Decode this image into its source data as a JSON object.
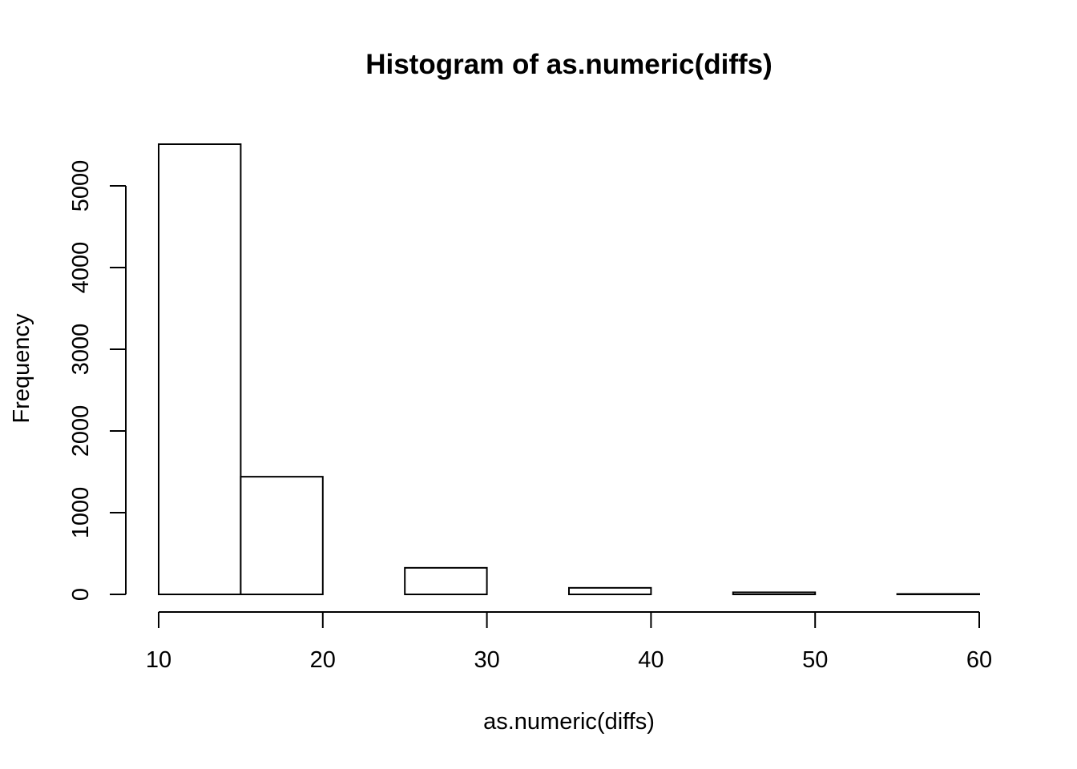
{
  "chart_data": {
    "type": "bar",
    "title": "Histogram of as.numeric(diffs)",
    "xlabel": "as.numeric(diffs)",
    "ylabel": "Frequency",
    "bins": [
      {
        "start": 10,
        "end": 15,
        "count": 5510
      },
      {
        "start": 15,
        "end": 20,
        "count": 1440
      },
      {
        "start": 20,
        "end": 25,
        "count": 0
      },
      {
        "start": 25,
        "end": 30,
        "count": 325
      },
      {
        "start": 30,
        "end": 35,
        "count": 0
      },
      {
        "start": 35,
        "end": 40,
        "count": 80
      },
      {
        "start": 40,
        "end": 45,
        "count": 0
      },
      {
        "start": 45,
        "end": 50,
        "count": 25
      },
      {
        "start": 50,
        "end": 55,
        "count": 0
      },
      {
        "start": 55,
        "end": 60,
        "count": 5
      }
    ],
    "xlim": [
      10,
      60
    ],
    "ylim": [
      0,
      5510
    ],
    "x_ticks": [
      10,
      20,
      30,
      40,
      50,
      60
    ],
    "y_ticks": [
      0,
      1000,
      2000,
      3000,
      4000,
      5000
    ],
    "grid": false,
    "bar_fill": "#ffffff",
    "bar_stroke": "#000000"
  }
}
